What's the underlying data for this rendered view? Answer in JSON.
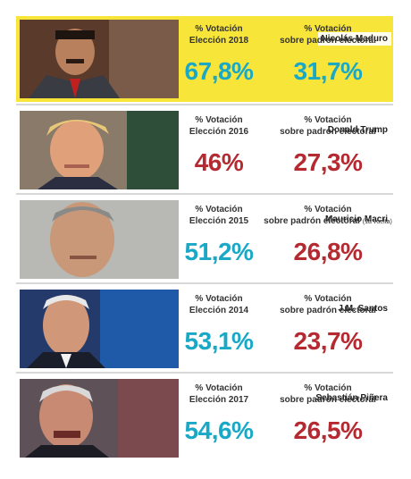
{
  "colors": {
    "highlight": "#f7e53a",
    "blue": "#1aa8c7",
    "red": "#b52a31"
  },
  "rows": [
    {
      "name": "Nicolás Maduro",
      "label1": [
        "% Votación",
        "Elección 2018"
      ],
      "label2": [
        "% Votación",
        "sobre padrón electoral"
      ],
      "note": "",
      "value1": "67,8%",
      "value1_color": "#1aa8c7",
      "value2": "31,7%",
      "value2_color": "#1aa8c7"
    },
    {
      "name": "Donald Trump",
      "label1": [
        "% Votación",
        "Elección 2016"
      ],
      "label2": [
        "% Votación",
        "sobre padrón electoral"
      ],
      "note": "",
      "value1": "46%",
      "value1_color": "#b52a31",
      "value2": "27,3%",
      "value2_color": "#b52a31"
    },
    {
      "name": "Mauricio Macri",
      "label1": [
        "% Votación",
        "Elección 2015"
      ],
      "label2": [
        "% Votación",
        "sobre padrón electoral"
      ],
      "note": "(1a vuelta)",
      "value1": "51,2%",
      "value1_color": "#1aa8c7",
      "value2": "26,8%",
      "value2_color": "#b52a31"
    },
    {
      "name": "J.M. Santos",
      "label1": [
        "% Votación",
        "Elección 2014"
      ],
      "label2": [
        "% Votación",
        "sobre padrón electoral"
      ],
      "note": "",
      "value1": "53,1%",
      "value1_color": "#1aa8c7",
      "value2": "23,7%",
      "value2_color": "#b52a31"
    },
    {
      "name": "Sebastián Piñera",
      "label1": [
        "% Votación",
        "Elección 2017"
      ],
      "label2": [
        "% Votación",
        "sobre padrón electoral"
      ],
      "note": "",
      "value1": "54,6%",
      "value1_color": "#1aa8c7",
      "value2": "26,5%",
      "value2_color": "#b52a31"
    }
  ]
}
